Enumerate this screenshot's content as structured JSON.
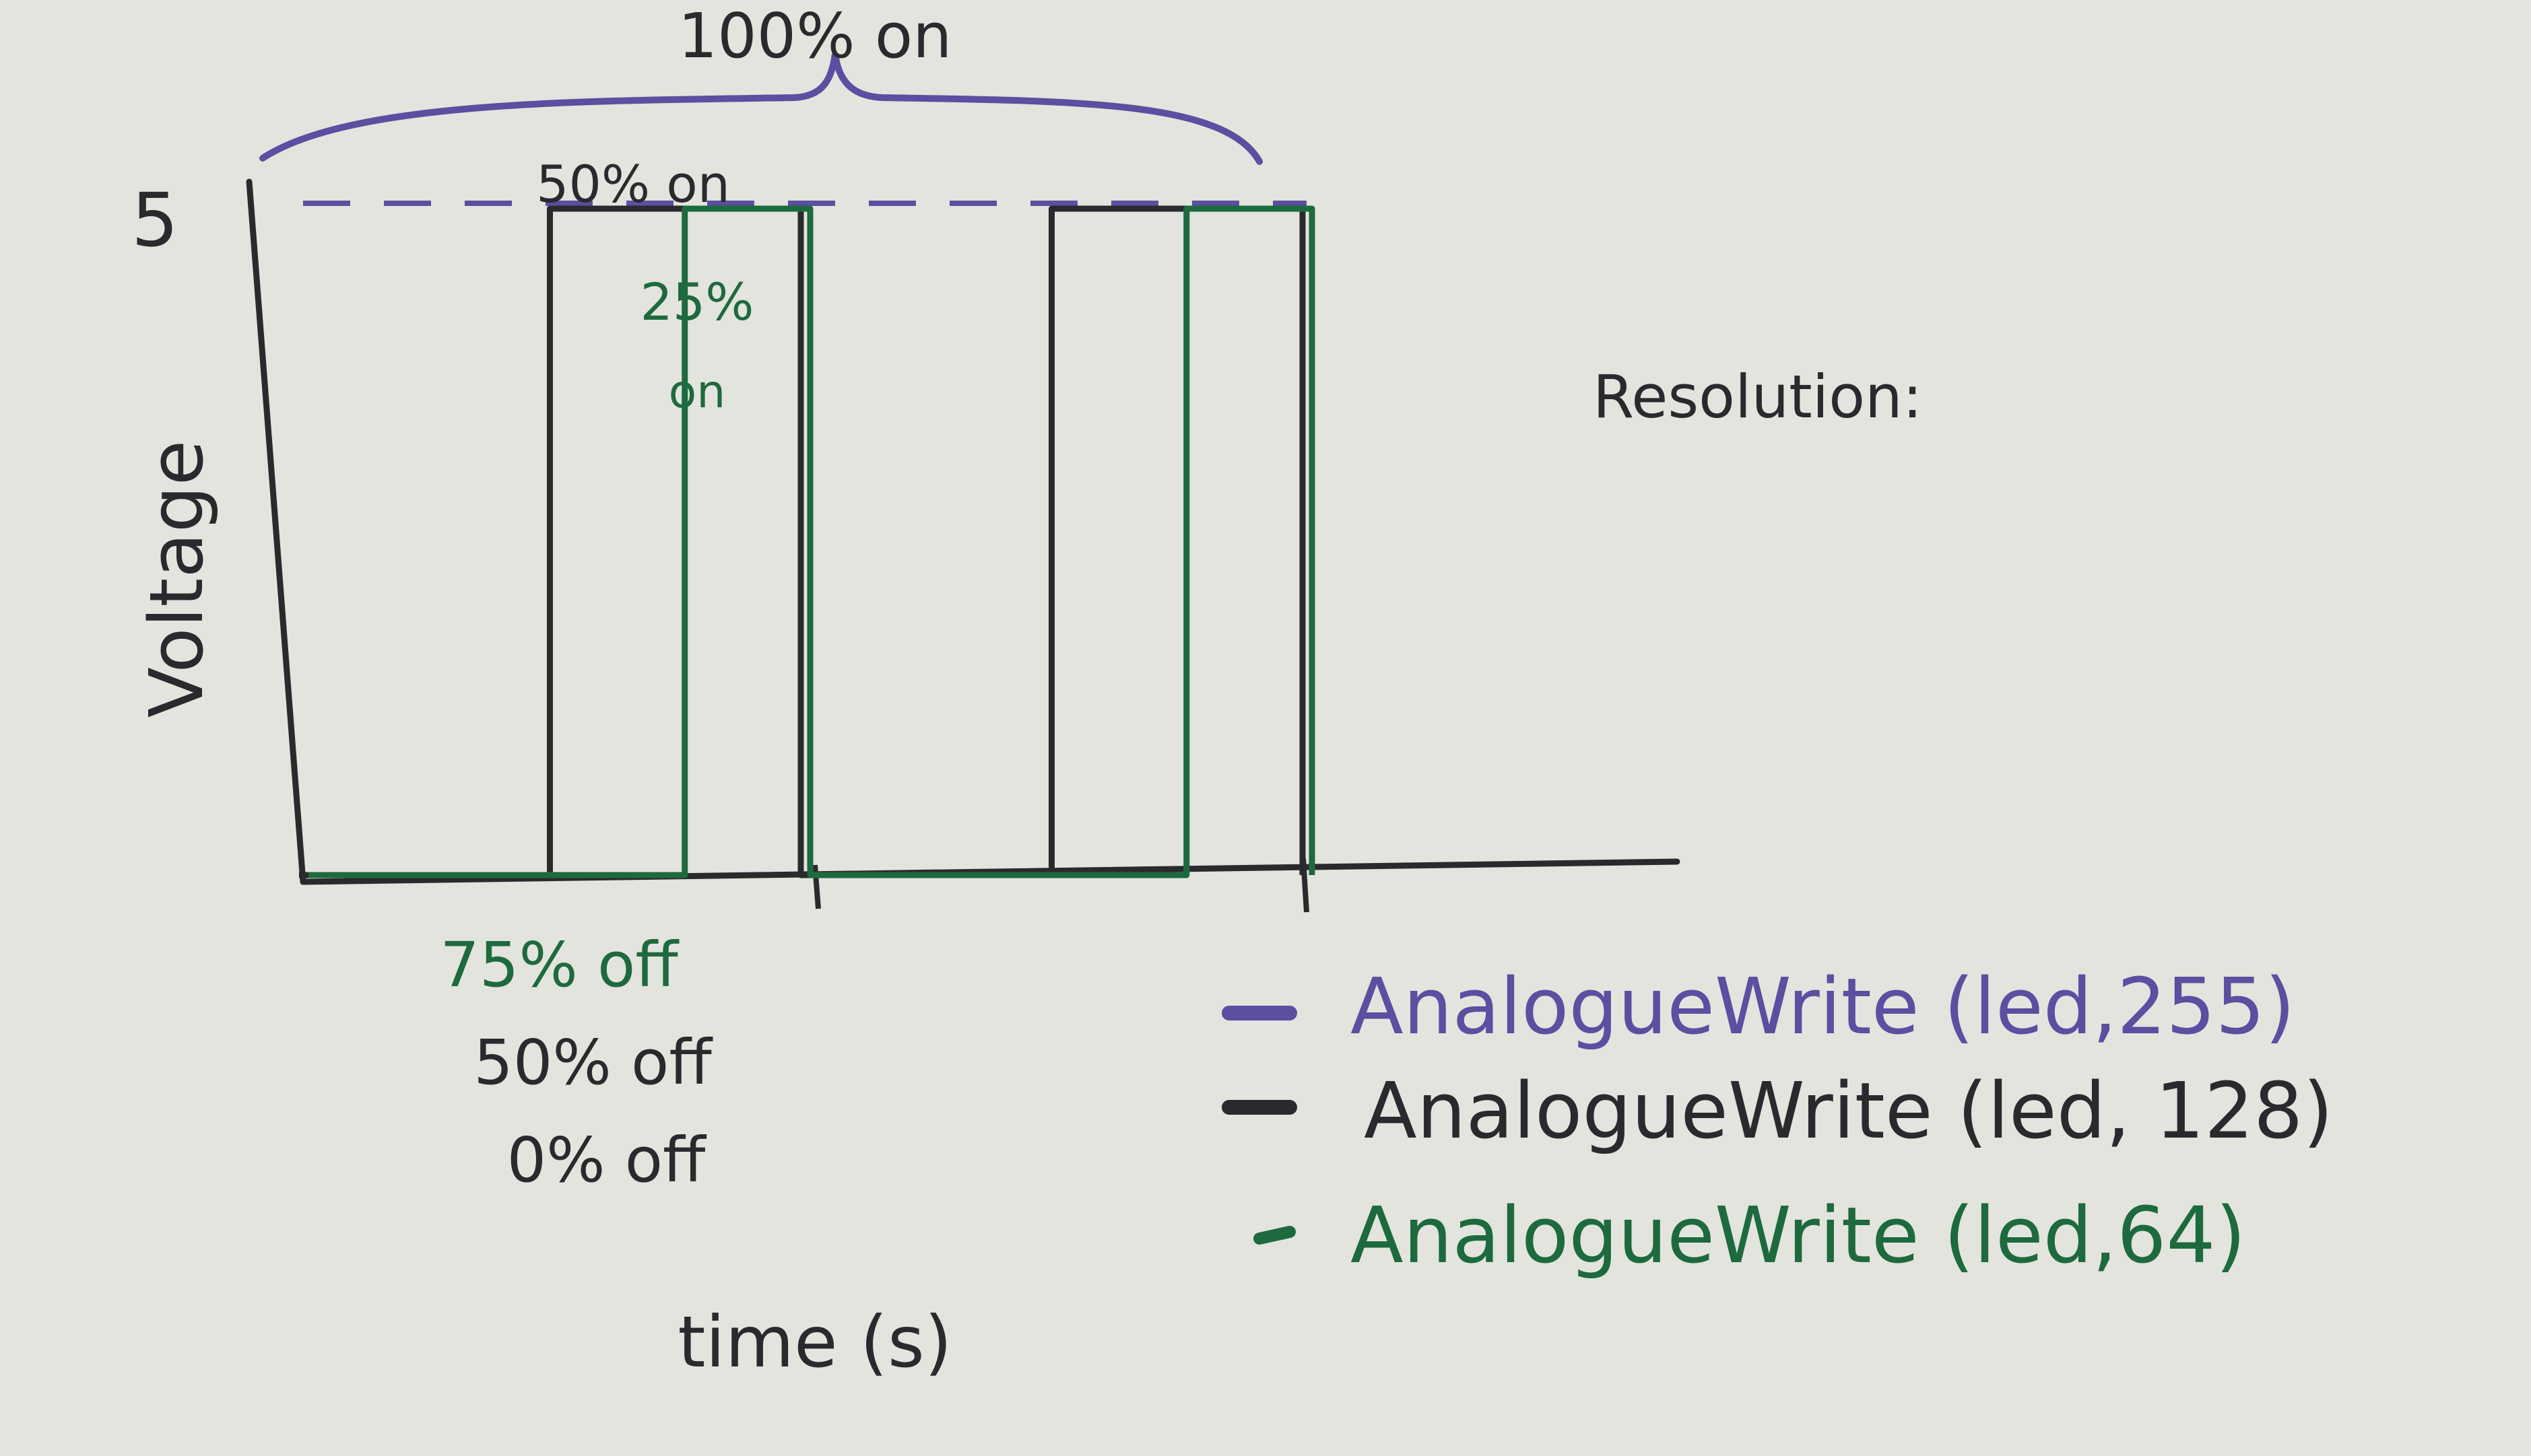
{
  "colors": {
    "paper": "#e3e4dd",
    "purple": "#5a4fa0",
    "black": "#2a2a2e",
    "green": "#1d6a3e"
  },
  "chart_data": {
    "type": "line",
    "ylabel": "Voltage",
    "xlabel": "time (s)",
    "y_tick_labels": [
      "5"
    ],
    "ylim": [
      0,
      5
    ],
    "xlim": [
      0,
      2
    ],
    "annotations": {
      "top": "100% on",
      "black_on": "50% on",
      "green_on_line1": "25%",
      "green_on_line2": "on",
      "off_labels": [
        "75% off",
        "50% off",
        "0% off"
      ],
      "scribble": "Resolution:"
    },
    "series": [
      {
        "name": "AnalogueWrite (led,255)",
        "color": "#5a4fa0",
        "style": "dashed",
        "points": [
          [
            0,
            5
          ],
          [
            2,
            5
          ]
        ]
      },
      {
        "name": "AnalogueWrite (led, 128)",
        "color": "#2a2a2e",
        "style": "solid",
        "points": [
          [
            0,
            0
          ],
          [
            0.5,
            0
          ],
          [
            0.5,
            5
          ],
          [
            1,
            5
          ],
          [
            1,
            0
          ],
          [
            1.5,
            0
          ],
          [
            1.5,
            5
          ],
          [
            2,
            5
          ],
          [
            2,
            0
          ]
        ]
      },
      {
        "name": "AnalogueWrite (led,64)",
        "color": "#1d6a3e",
        "style": "solid",
        "points": [
          [
            0,
            0
          ],
          [
            0.75,
            0
          ],
          [
            0.75,
            5
          ],
          [
            1,
            5
          ],
          [
            1,
            0
          ],
          [
            1.75,
            0
          ],
          [
            1.75,
            5
          ],
          [
            2,
            5
          ],
          [
            2,
            0
          ]
        ]
      }
    ],
    "legend": "bottom-right",
    "grid": false
  }
}
